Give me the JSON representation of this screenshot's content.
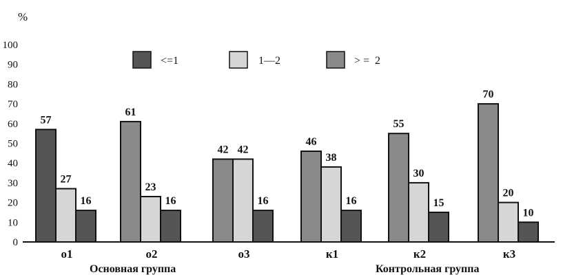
{
  "chart_data": {
    "type": "bar",
    "unit_label": "%",
    "categories": [
      "о1",
      "о2",
      "о3",
      "к1",
      "к2",
      "к3"
    ],
    "group_labels": [
      "Основная группа",
      "Контрольная группа"
    ],
    "series_colors": [
      "#555555",
      "#d6d6d6",
      "#8a8a8a"
    ],
    "legend_placement": "top-center",
    "ylim": [
      0,
      100
    ],
    "yticks": [
      0,
      10,
      20,
      30,
      40,
      50,
      60,
      70,
      80,
      90,
      100
    ],
    "bars": [
      [
        {
          "series": 0,
          "value": 57
        },
        {
          "series": 1,
          "value": 27
        },
        {
          "series": 0,
          "value": 16
        }
      ],
      [
        {
          "series": 2,
          "value": 61
        },
        {
          "series": 1,
          "value": 23
        },
        {
          "series": 0,
          "value": 16
        }
      ],
      [
        {
          "series": 2,
          "value": 42
        },
        {
          "series": 1,
          "value": 42
        },
        {
          "series": 0,
          "value": 16
        }
      ],
      [
        {
          "series": 2,
          "value": 46
        },
        {
          "series": 1,
          "value": 38
        },
        {
          "series": 0,
          "value": 16
        }
      ],
      [
        {
          "series": 2,
          "value": 55
        },
        {
          "series": 1,
          "value": 30
        },
        {
          "series": 0,
          "value": 15
        }
      ],
      [
        {
          "series": 2,
          "value": 70
        },
        {
          "series": 1,
          "value": 20
        },
        {
          "series": 0,
          "value": 10
        }
      ]
    ],
    "series": [
      {
        "name": "<=1"
      },
      {
        "name": "1—2"
      },
      {
        "name": "> =  2"
      }
    ]
  }
}
